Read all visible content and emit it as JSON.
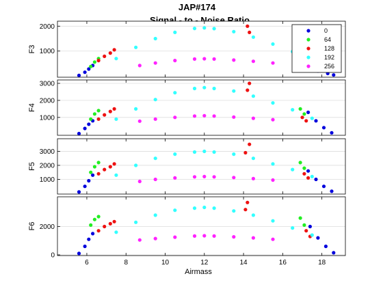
{
  "figure": {
    "title_line1": "JAP#174",
    "title_line2": "Signal - to - Noise Ratio"
  },
  "chart_data": {
    "type": "scatter",
    "xlabel": "Airmass",
    "xlim": [
      4.5,
      19.2
    ],
    "xticks": [
      6,
      8,
      10,
      12,
      14,
      16,
      18
    ],
    "legend_location": "top-right",
    "grid": "horizontal",
    "series_legend": [
      {
        "name": "0",
        "color": "#0000dd"
      },
      {
        "name": "64",
        "color": "#22ee22"
      },
      {
        "name": "128",
        "color": "#ee1111"
      },
      {
        "name": "192",
        "color": "#33ffff"
      },
      {
        "name": "256",
        "color": "#ff22ff"
      }
    ],
    "panels": [
      {
        "ylabel": "F3",
        "ylim": [
          -50,
          2200
        ],
        "yticks": [
          1000,
          2000
        ],
        "series": [
          {
            "name": "0",
            "points": [
              [
                5.6,
                20
              ],
              [
                5.9,
                150
              ],
              [
                6.1,
                280
              ],
              [
                6.3,
                420
              ],
              [
                16.9,
                500
              ],
              [
                17.3,
                320
              ],
              [
                17.8,
                200
              ],
              [
                18.3,
                100
              ],
              [
                18.6,
                40
              ]
            ]
          },
          {
            "name": "64",
            "points": [
              [
                6.2,
                380
              ],
              [
                6.4,
                560
              ],
              [
                6.6,
                700
              ],
              [
                16.8,
                900
              ],
              [
                17.0,
                650
              ]
            ]
          },
          {
            "name": "128",
            "points": [
              [
                6.6,
                620
              ],
              [
                6.9,
                790
              ],
              [
                7.2,
                920
              ],
              [
                7.4,
                1050
              ],
              [
                14.2,
                2000
              ],
              [
                14.3,
                1750
              ],
              [
                16.6,
                870
              ],
              [
                17.0,
                720
              ]
            ]
          },
          {
            "name": "192",
            "points": [
              [
                7.5,
                700
              ],
              [
                8.5,
                1150
              ],
              [
                9.5,
                1500
              ],
              [
                10.5,
                1750
              ],
              [
                11.5,
                1910
              ],
              [
                12.0,
                1930
              ],
              [
                12.5,
                1900
              ],
              [
                13.5,
                1780
              ],
              [
                14.5,
                1560
              ],
              [
                15.5,
                1280
              ],
              [
                16.5,
                980
              ],
              [
                17.5,
                650
              ],
              [
                18.5,
                300
              ]
            ]
          },
          {
            "name": "256",
            "points": [
              [
                8.7,
                420
              ],
              [
                9.5,
                520
              ],
              [
                10.5,
                620
              ],
              [
                11.5,
                680
              ],
              [
                12.0,
                690
              ],
              [
                12.5,
                680
              ],
              [
                13.5,
                640
              ],
              [
                14.5,
                590
              ],
              [
                15.5,
                520
              ]
            ]
          }
        ]
      },
      {
        "ylabel": "F4",
        "ylim": [
          -50,
          3200
        ],
        "yticks": [
          1000,
          2000,
          3000
        ],
        "series": [
          {
            "name": "0",
            "points": [
              [
                5.6,
                50
              ],
              [
                5.9,
                350
              ],
              [
                6.1,
                600
              ],
              [
                6.3,
                800
              ],
              [
                17.3,
                1300
              ],
              [
                17.7,
                800
              ],
              [
                18.1,
                400
              ],
              [
                18.5,
                100
              ]
            ]
          },
          {
            "name": "64",
            "points": [
              [
                6.2,
                900
              ],
              [
                6.4,
                1200
              ],
              [
                6.6,
                1400
              ],
              [
                16.9,
                1500
              ],
              [
                17.1,
                1200
              ]
            ]
          },
          {
            "name": "128",
            "points": [
              [
                6.6,
                900
              ],
              [
                6.9,
                1150
              ],
              [
                7.2,
                1350
              ],
              [
                7.4,
                1500
              ],
              [
                14.3,
                3000
              ],
              [
                14.2,
                2600
              ],
              [
                17.0,
                1000
              ],
              [
                17.2,
                800
              ]
            ]
          },
          {
            "name": "192",
            "points": [
              [
                7.5,
                900
              ],
              [
                8.5,
                1500
              ],
              [
                9.5,
                2050
              ],
              [
                10.5,
                2450
              ],
              [
                11.5,
                2700
              ],
              [
                12.0,
                2750
              ],
              [
                12.5,
                2700
              ],
              [
                13.5,
                2550
              ],
              [
                14.5,
                2250
              ],
              [
                15.5,
                1850
              ],
              [
                16.5,
                1450
              ],
              [
                17.5,
                950
              ]
            ]
          },
          {
            "name": "256",
            "points": [
              [
                8.7,
                780
              ],
              [
                9.5,
                900
              ],
              [
                10.5,
                1000
              ],
              [
                11.5,
                1080
              ],
              [
                12.0,
                1100
              ],
              [
                12.5,
                1080
              ],
              [
                13.5,
                1020
              ],
              [
                14.5,
                950
              ],
              [
                15.5,
                870
              ]
            ]
          }
        ]
      },
      {
        "ylabel": "F5",
        "ylim": [
          -50,
          3900
        ],
        "yticks": [
          1000,
          2000,
          3000
        ],
        "series": [
          {
            "name": "0",
            "points": [
              [
                5.6,
                100
              ],
              [
                5.9,
                500
              ],
              [
                6.1,
                900
              ],
              [
                6.3,
                1300
              ],
              [
                17.3,
                1600
              ],
              [
                17.7,
                1000
              ],
              [
                18.1,
                500
              ],
              [
                18.5,
                150
              ]
            ]
          },
          {
            "name": "64",
            "points": [
              [
                6.2,
                1500
              ],
              [
                6.4,
                1900
              ],
              [
                6.6,
                2200
              ],
              [
                16.9,
                2200
              ],
              [
                17.1,
                1800
              ]
            ]
          },
          {
            "name": "128",
            "points": [
              [
                6.6,
                1400
              ],
              [
                6.9,
                1700
              ],
              [
                7.2,
                1900
              ],
              [
                7.4,
                2100
              ],
              [
                14.3,
                3500
              ],
              [
                14.1,
                2900
              ],
              [
                17.1,
                1400
              ],
              [
                17.3,
                1100
              ]
            ]
          },
          {
            "name": "192",
            "points": [
              [
                7.5,
                1300
              ],
              [
                8.5,
                2000
              ],
              [
                9.5,
                2500
              ],
              [
                10.5,
                2800
              ],
              [
                11.5,
                2950
              ],
              [
                12.0,
                3000
              ],
              [
                12.5,
                2950
              ],
              [
                13.5,
                2800
              ],
              [
                14.5,
                2500
              ],
              [
                15.5,
                2100
              ],
              [
                16.5,
                1700
              ],
              [
                17.5,
                1200
              ]
            ]
          },
          {
            "name": "256",
            "points": [
              [
                8.7,
                850
              ],
              [
                9.5,
                1000
              ],
              [
                10.5,
                1100
              ],
              [
                11.5,
                1180
              ],
              [
                12.0,
                1200
              ],
              [
                12.5,
                1180
              ],
              [
                13.5,
                1130
              ],
              [
                14.5,
                1050
              ],
              [
                15.5,
                950
              ]
            ]
          }
        ]
      },
      {
        "ylabel": "F6",
        "ylim": [
          -50,
          4100
        ],
        "yticks": [
          0,
          2000
        ],
        "series": [
          {
            "name": "0",
            "points": [
              [
                5.6,
                100
              ],
              [
                5.9,
                600
              ],
              [
                6.1,
                1100
              ],
              [
                6.3,
                1500
              ],
              [
                17.4,
                2000
              ],
              [
                17.8,
                1200
              ],
              [
                18.2,
                600
              ],
              [
                18.6,
                150
              ]
            ]
          },
          {
            "name": "64",
            "points": [
              [
                6.2,
                2100
              ],
              [
                6.4,
                2500
              ],
              [
                6.6,
                2700
              ],
              [
                16.9,
                2600
              ],
              [
                17.1,
                2100
              ]
            ]
          },
          {
            "name": "128",
            "points": [
              [
                6.6,
                1700
              ],
              [
                6.9,
                2000
              ],
              [
                7.2,
                2200
              ],
              [
                7.4,
                2350
              ],
              [
                14.2,
                3700
              ],
              [
                14.1,
                3200
              ],
              [
                17.2,
                1700
              ],
              [
                17.4,
                1300
              ]
            ]
          },
          {
            "name": "192",
            "points": [
              [
                7.5,
                1600
              ],
              [
                8.5,
                2300
              ],
              [
                9.5,
                2800
              ],
              [
                10.5,
                3150
              ],
              [
                11.5,
                3300
              ],
              [
                12.0,
                3350
              ],
              [
                12.5,
                3300
              ],
              [
                13.5,
                3100
              ],
              [
                14.5,
                2800
              ],
              [
                15.5,
                2400
              ],
              [
                16.5,
                1900
              ],
              [
                17.5,
                1400
              ]
            ]
          },
          {
            "name": "256",
            "points": [
              [
                8.7,
                1050
              ],
              [
                9.5,
                1150
              ],
              [
                10.5,
                1250
              ],
              [
                11.5,
                1330
              ],
              [
                12.0,
                1350
              ],
              [
                12.5,
                1330
              ],
              [
                13.5,
                1270
              ],
              [
                14.5,
                1200
              ],
              [
                15.5,
                1100
              ]
            ]
          }
        ]
      }
    ]
  }
}
